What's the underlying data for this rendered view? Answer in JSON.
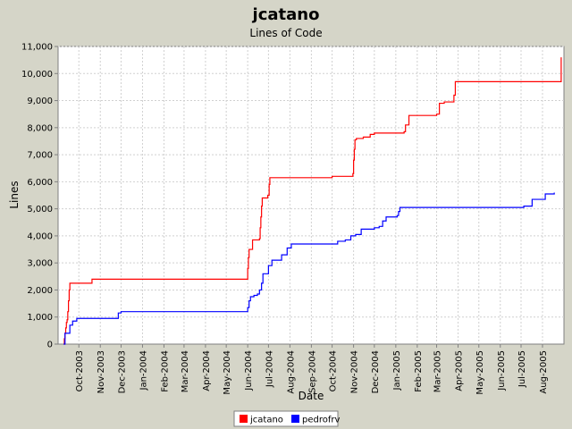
{
  "chart_data": {
    "type": "line",
    "title": "jcatano",
    "subtitle": "Lines of Code",
    "xlabel": "Date",
    "ylabel": "Lines",
    "ylim": [
      0,
      11000
    ],
    "xlim": [
      "2003-09-01",
      "2005-09-01"
    ],
    "y_ticks": [
      "0",
      "1,000",
      "2,000",
      "3,000",
      "4,000",
      "5,000",
      "6,000",
      "7,000",
      "8,000",
      "9,000",
      "10,000",
      "11,000"
    ],
    "x_ticks": [
      "Oct-2003",
      "Nov-2003",
      "Dec-2003",
      "Jan-2004",
      "Feb-2004",
      "Mar-2004",
      "Apr-2004",
      "May-2004",
      "Jun-2004",
      "Jul-2004",
      "Aug-2004",
      "Sep-2004",
      "Oct-2004",
      "Nov-2004",
      "Dec-2004",
      "Jan-2005",
      "Feb-2005",
      "Mar-2005",
      "Apr-2005",
      "May-2005",
      "Jun-2005",
      "Jul-2005",
      "Aug-2005"
    ],
    "grid": true,
    "legend_position": "bottom",
    "series": [
      {
        "name": "jcatano",
        "color": "#ff0000",
        "step": true,
        "points": [
          [
            "2003-09-09",
            0
          ],
          [
            "2003-09-10",
            200
          ],
          [
            "2003-09-11",
            400
          ],
          [
            "2003-09-12",
            600
          ],
          [
            "2003-09-13",
            800
          ],
          [
            "2003-09-14",
            900
          ],
          [
            "2003-09-15",
            1200
          ],
          [
            "2003-09-16",
            1600
          ],
          [
            "2003-09-17",
            2000
          ],
          [
            "2003-09-18",
            2250
          ],
          [
            "2003-10-20",
            2400
          ],
          [
            "2004-05-31",
            2400
          ],
          [
            "2004-06-01",
            2800
          ],
          [
            "2004-06-02",
            3200
          ],
          [
            "2004-06-03",
            3500
          ],
          [
            "2004-06-08",
            3850
          ],
          [
            "2004-06-18",
            3900
          ],
          [
            "2004-06-19",
            4300
          ],
          [
            "2004-06-20",
            4700
          ],
          [
            "2004-06-21",
            5100
          ],
          [
            "2004-06-22",
            5400
          ],
          [
            "2004-06-30",
            5500
          ],
          [
            "2004-07-02",
            5900
          ],
          [
            "2004-07-03",
            6150
          ],
          [
            "2004-10-01",
            6200
          ],
          [
            "2004-10-31",
            6300
          ],
          [
            "2004-11-01",
            6800
          ],
          [
            "2004-11-02",
            7200
          ],
          [
            "2004-11-03",
            7550
          ],
          [
            "2004-11-05",
            7600
          ],
          [
            "2004-11-15",
            7650
          ],
          [
            "2004-11-25",
            7750
          ],
          [
            "2004-12-01",
            7800
          ],
          [
            "2005-01-13",
            7850
          ],
          [
            "2005-01-15",
            8100
          ],
          [
            "2005-01-20",
            8450
          ],
          [
            "2005-03-01",
            8500
          ],
          [
            "2005-03-05",
            8900
          ],
          [
            "2005-03-12",
            8950
          ],
          [
            "2005-03-26",
            9200
          ],
          [
            "2005-03-28",
            9700
          ],
          [
            "2005-08-27",
            9700
          ],
          [
            "2005-08-28",
            10600
          ]
        ]
      },
      {
        "name": "pedrofrv",
        "color": "#0000ff",
        "step": true,
        "points": [
          [
            "2003-09-09",
            0
          ],
          [
            "2003-09-11",
            400
          ],
          [
            "2003-09-18",
            700
          ],
          [
            "2003-09-22",
            850
          ],
          [
            "2003-09-28",
            950
          ],
          [
            "2003-11-27",
            1150
          ],
          [
            "2003-12-01",
            1200
          ],
          [
            "2004-05-31",
            1200
          ],
          [
            "2004-06-01",
            1350
          ],
          [
            "2004-06-03",
            1600
          ],
          [
            "2004-06-05",
            1750
          ],
          [
            "2004-06-10",
            1800
          ],
          [
            "2004-06-15",
            1850
          ],
          [
            "2004-06-18",
            2000
          ],
          [
            "2004-06-21",
            2250
          ],
          [
            "2004-06-23",
            2600
          ],
          [
            "2004-07-01",
            2900
          ],
          [
            "2004-07-06",
            3100
          ],
          [
            "2004-07-20",
            3300
          ],
          [
            "2004-07-28",
            3550
          ],
          [
            "2004-08-03",
            3700
          ],
          [
            "2004-10-09",
            3800
          ],
          [
            "2004-10-20",
            3850
          ],
          [
            "2004-10-28",
            4000
          ],
          [
            "2004-11-04",
            4050
          ],
          [
            "2004-11-12",
            4250
          ],
          [
            "2004-12-01",
            4300
          ],
          [
            "2004-12-08",
            4350
          ],
          [
            "2004-12-13",
            4550
          ],
          [
            "2004-12-18",
            4700
          ],
          [
            "2005-01-03",
            4750
          ],
          [
            "2005-01-05",
            4900
          ],
          [
            "2005-01-07",
            5050
          ],
          [
            "2005-06-29",
            5050
          ],
          [
            "2005-07-05",
            5100
          ],
          [
            "2005-07-17",
            5350
          ],
          [
            "2005-08-05",
            5550
          ],
          [
            "2005-08-18",
            5600
          ]
        ]
      }
    ]
  }
}
